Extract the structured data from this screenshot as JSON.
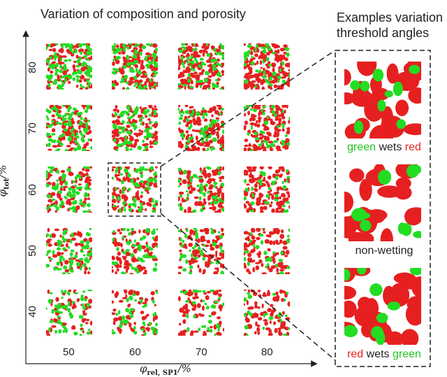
{
  "title": "Variation of composition and porosity",
  "right_title_line1": "Examples variation",
  "right_title_line2": "threshold angles",
  "x_axis": {
    "label_main": "φ",
    "label_sub": "rel, SP1",
    "label_unit": "/%",
    "ticks": [
      "50",
      "60",
      "70",
      "80"
    ]
  },
  "y_axis": {
    "label_main": "φ",
    "label_sub": "tot",
    "label_unit": "/%",
    "ticks": [
      "80",
      "70",
      "60",
      "50",
      "40"
    ]
  },
  "examples": [
    {
      "part1": "green",
      "part2": "wets",
      "part3": "red"
    },
    {
      "text": "non-wetting"
    },
    {
      "part1": "red",
      "part2": "wets",
      "part3": "green"
    }
  ],
  "colors": {
    "red": "#e62020",
    "green": "#22dd22",
    "white": "#ffffff",
    "axis": "#222222"
  }
}
